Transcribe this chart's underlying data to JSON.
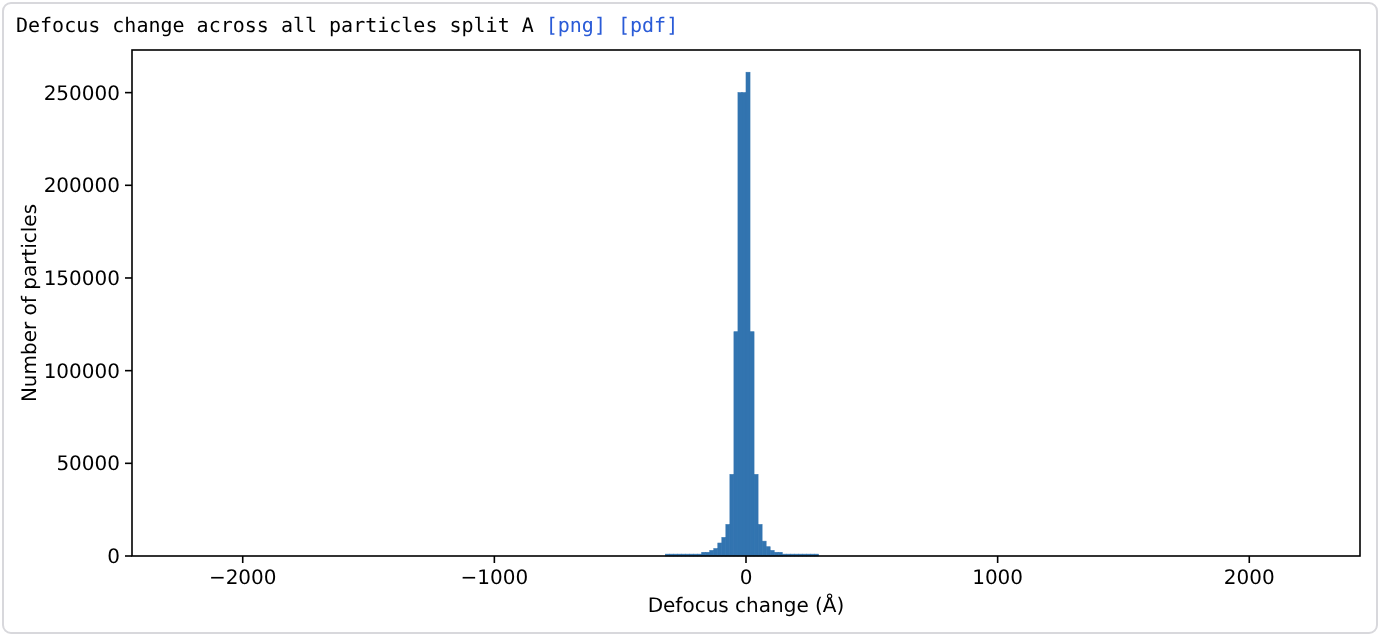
{
  "chart_data": {
    "type": "histogram",
    "title": "Defocus change across all particles split A",
    "annotations": [
      "[png]",
      "[pdf]"
    ],
    "xlabel": "Defocus change (Å)",
    "ylabel": "Number of particles",
    "color": "#3274b0",
    "bins": [
      -320,
      -304,
      -288,
      -272,
      -256,
      -240,
      -224,
      -208,
      -192,
      -176,
      -160,
      -144,
      -128,
      -112,
      -96,
      -80,
      -64,
      -48,
      -32,
      -16,
      0,
      16,
      32,
      48,
      64,
      80,
      96,
      112,
      128,
      144,
      160,
      176,
      192,
      208,
      224,
      240,
      256,
      272,
      288
    ],
    "values": [
      1000,
      1000,
      1000,
      1000,
      1000,
      1000,
      1000,
      1000,
      1000,
      2000,
      2000,
      3000,
      4000,
      7000,
      10000,
      17000,
      44000,
      121000,
      250000,
      250000,
      261000,
      121000,
      44000,
      17000,
      8000,
      5000,
      3000,
      2000,
      2000,
      1000,
      1000,
      1000,
      1000,
      1000,
      1000,
      1000,
      1000,
      1000
    ],
    "xlim": [
      -2440,
      2440
    ],
    "xticks": [
      {
        "value": -2000,
        "label": "−2000"
      },
      {
        "value": -1000,
        "label": "−1000"
      },
      0,
      1000,
      2000
    ],
    "ylim": [
      0,
      273000
    ],
    "yticks": [
      0,
      50000,
      100000,
      150000,
      200000,
      250000
    ],
    "grid": false
  }
}
